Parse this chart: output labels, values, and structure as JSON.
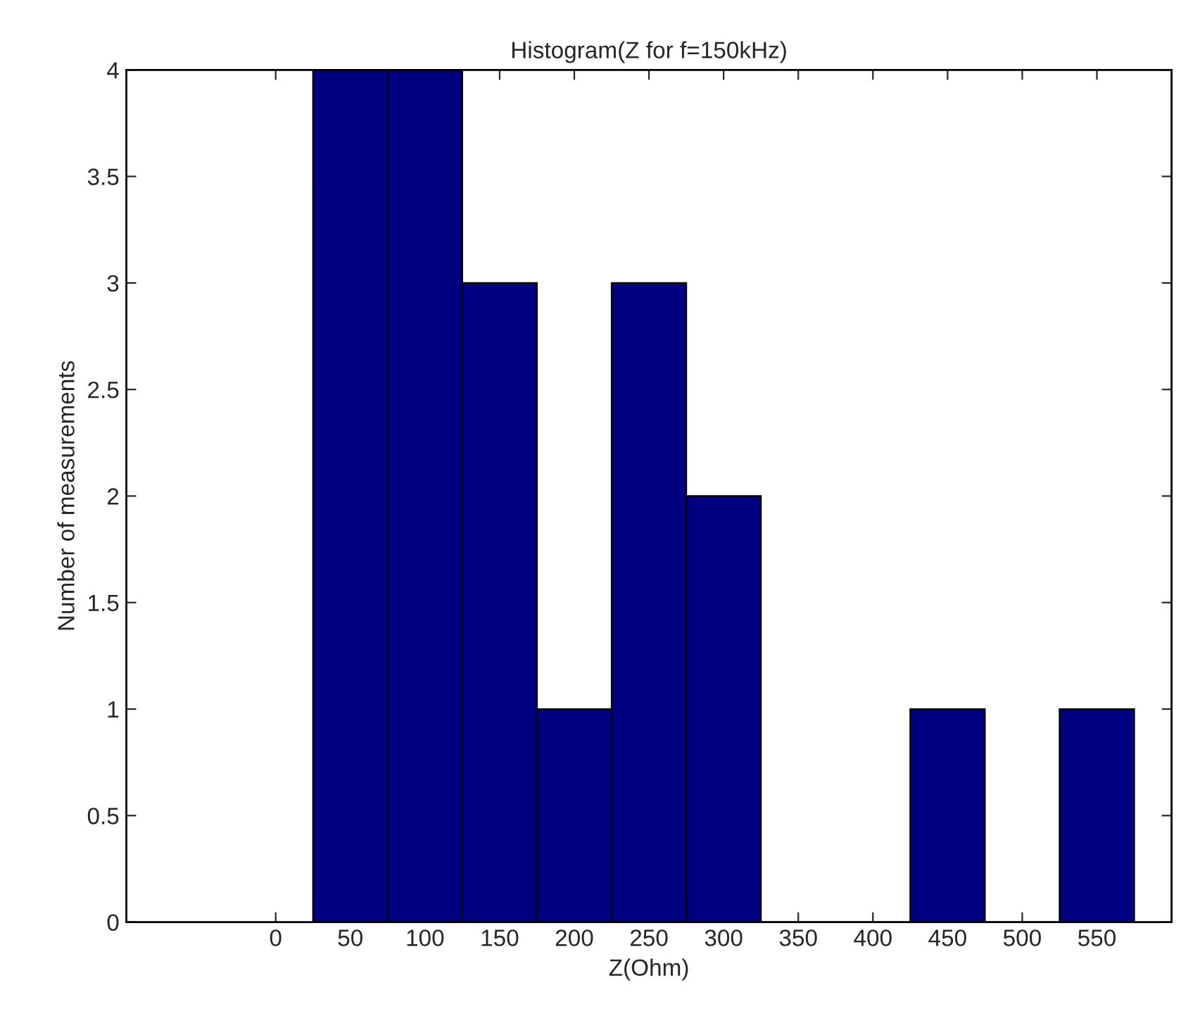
{
  "chart_data": {
    "type": "histogram",
    "title": "Histogram(Z for f=150kHz)",
    "xlabel": "Z(Ohm)",
    "ylabel": "Number of measurements",
    "bins": [
      25,
      75,
      125,
      175,
      225,
      275,
      325,
      375,
      425,
      475,
      525,
      575
    ],
    "values": [
      4,
      4,
      3,
      1,
      3,
      2,
      0,
      0,
      1,
      0,
      1
    ],
    "color": "#000080",
    "xlim": [
      -100,
      600
    ],
    "xticks": [
      0,
      50,
      100,
      150,
      200,
      250,
      300,
      350,
      400,
      450,
      500,
      550
    ],
    "ylim": [
      0,
      4
    ],
    "yticks": [
      0,
      0.5,
      1,
      1.5,
      2,
      2.5,
      3,
      3.5,
      4
    ],
    "grid": false,
    "legend": false
  }
}
